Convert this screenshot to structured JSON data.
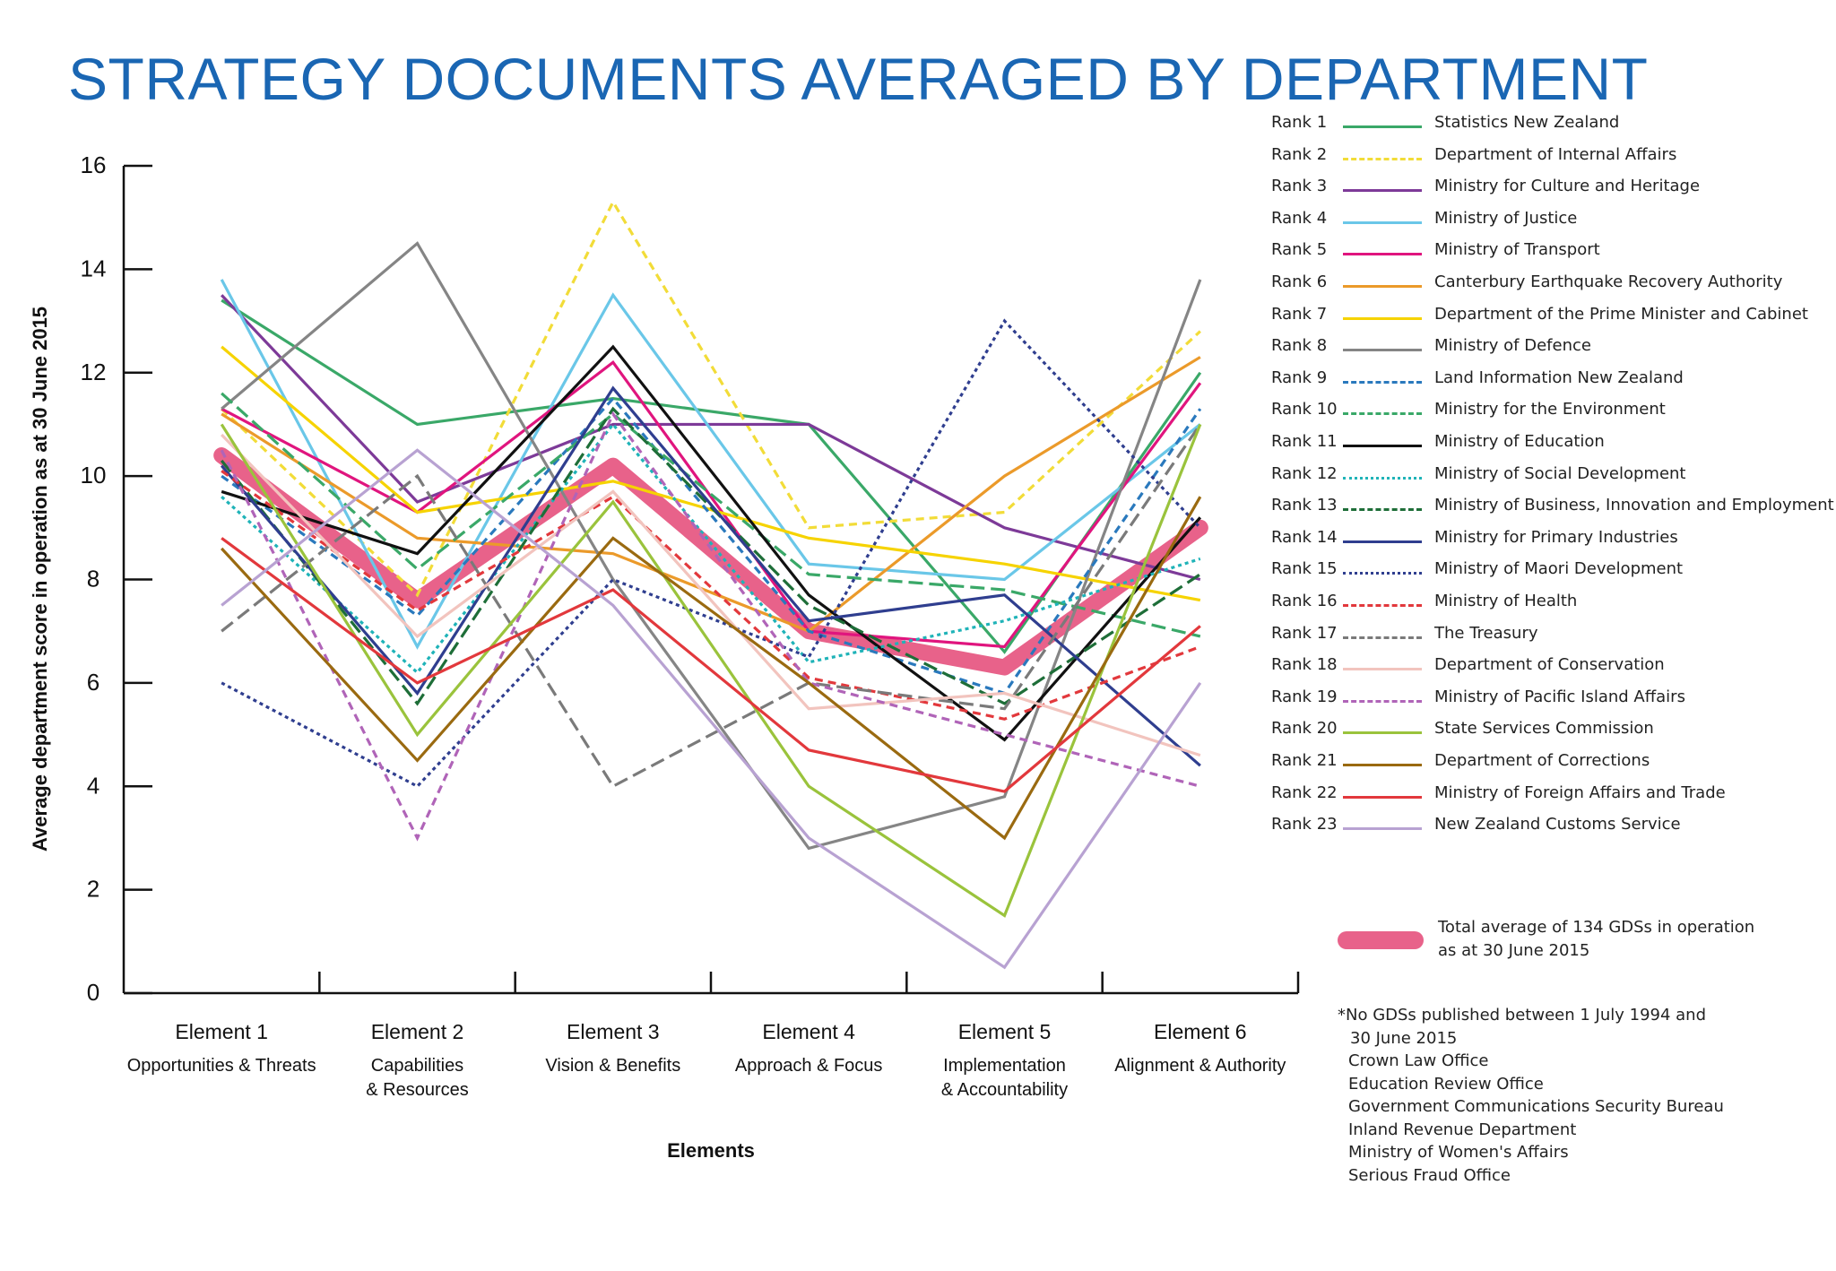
{
  "title": "STRATEGY DOCUMENTS AVERAGED BY DEPARTMENT",
  "chart_data": {
    "type": "line",
    "title": "STRATEGY DOCUMENTS AVERAGED BY DEPARTMENT",
    "xlabel": "Elements",
    "ylabel": "Average department score in operation as at 30 June 2015",
    "ylim": [
      0,
      16
    ],
    "yticks": [
      "0",
      "2",
      "4",
      "6",
      "8",
      "10",
      "12",
      "14",
      "16"
    ],
    "categories": [
      {
        "line1": "Element 1",
        "line2": "Opportunities & Threats",
        "line3": ""
      },
      {
        "line1": "Element 2",
        "line2": "Capabilities",
        "line3": "& Resources"
      },
      {
        "line1": "Element 3",
        "line2": "Vision & Benefits",
        "line3": ""
      },
      {
        "line1": "Element 4",
        "line2": "Approach & Focus",
        "line3": ""
      },
      {
        "line1": "Element 5",
        "line2": "Implementation",
        "line3": "& Accountability"
      },
      {
        "line1": "Element 6",
        "line2": "Alignment & Authority",
        "line3": ""
      }
    ],
    "grid": false,
    "legend_position": "right",
    "series": [
      {
        "rank": "Rank 1",
        "name": "Statistics New Zealand",
        "color": "#3aa868",
        "dash": "solid",
        "values": [
          13.4,
          11.0,
          11.5,
          11.0,
          6.6,
          12.0
        ]
      },
      {
        "rank": "Rank 2",
        "name": "Department of Internal Affairs",
        "color": "#f2dc38",
        "dash": "dashed",
        "values": [
          11.3,
          7.7,
          15.3,
          9.0,
          9.3,
          12.8
        ]
      },
      {
        "rank": "Rank 3",
        "name": "Ministry for Culture and Heritage",
        "color": "#7d3a98",
        "dash": "solid",
        "values": [
          13.5,
          9.5,
          11.0,
          11.0,
          9.0,
          8.0
        ]
      },
      {
        "rank": "Rank 4",
        "name": "Ministry of Justice",
        "color": "#6ac7e8",
        "dash": "solid",
        "values": [
          13.8,
          6.7,
          13.5,
          8.3,
          8.0,
          11.0
        ]
      },
      {
        "rank": "Rank 5",
        "name": "Ministry of Transport",
        "color": "#e0157e",
        "dash": "solid",
        "values": [
          11.3,
          9.3,
          12.2,
          7.0,
          6.7,
          11.8
        ]
      },
      {
        "rank": "Rank 6",
        "name": "Canterbury Earthquake Recovery Authority",
        "color": "#eb9a2a",
        "dash": "solid",
        "values": [
          11.2,
          8.8,
          8.5,
          7.0,
          10.0,
          12.3
        ]
      },
      {
        "rank": "Rank 7",
        "name": "Department of the Prime Minister and Cabinet",
        "color": "#f6d300",
        "dash": "solid",
        "values": [
          12.5,
          9.3,
          9.9,
          8.8,
          8.3,
          7.6
        ]
      },
      {
        "rank": "Rank 8",
        "name": "Ministry of Defence",
        "color": "#858585",
        "dash": "solid",
        "values": [
          11.3,
          14.5,
          8.0,
          2.8,
          3.8,
          13.8
        ]
      },
      {
        "rank": "Rank 9",
        "name": "Land Information New Zealand",
        "color": "#2a79bd",
        "dash": "dashed",
        "values": [
          10.0,
          7.3,
          11.5,
          7.0,
          5.8,
          11.3
        ]
      },
      {
        "rank": "Rank 10",
        "name": "Ministry for the Environment",
        "color": "#3aa868",
        "dash": "longdash",
        "values": [
          11.6,
          8.2,
          11.2,
          8.1,
          7.8,
          6.9
        ]
      },
      {
        "rank": "Rank 11",
        "name": "Ministry of Education",
        "color": "#111111",
        "dash": "solid",
        "values": [
          9.7,
          8.5,
          12.5,
          7.7,
          4.9,
          9.2
        ]
      },
      {
        "rank": "Rank 12",
        "name": "Ministry of Social Development",
        "color": "#1fb3b8",
        "dash": "dotted",
        "values": [
          9.6,
          6.2,
          11.0,
          6.4,
          7.2,
          8.4
        ]
      },
      {
        "rank": "Rank 13",
        "name": "Ministry of Business, Innovation and Employment",
        "color": "#1e6e38",
        "dash": "longdash",
        "values": [
          10.3,
          5.6,
          11.3,
          7.5,
          5.6,
          8.1
        ]
      },
      {
        "rank": "Rank 14",
        "name": "Ministry for Primary Industries",
        "color": "#2f3e8f",
        "dash": "solid",
        "values": [
          10.2,
          5.8,
          11.7,
          7.2,
          7.7,
          4.4
        ]
      },
      {
        "rank": "Rank 15",
        "name": "Ministry of Maori Development",
        "color": "#2f3e8f",
        "dash": "dotted",
        "values": [
          6.0,
          4.0,
          8.0,
          6.5,
          13.0,
          9.0
        ]
      },
      {
        "rank": "Rank 16",
        "name": "Ministry of Health",
        "color": "#e2383c",
        "dash": "dashed",
        "values": [
          10.1,
          7.4,
          9.6,
          6.1,
          5.3,
          6.7
        ]
      },
      {
        "rank": "Rank 17",
        "name": "The Treasury",
        "color": "#7a7a7a",
        "dash": "longdash",
        "values": [
          7.0,
          10.0,
          4.0,
          6.0,
          5.5,
          11.0
        ]
      },
      {
        "rank": "Rank 18",
        "name": "Department of Conservation",
        "color": "#f2c4be",
        "dash": "solid",
        "values": [
          10.8,
          6.9,
          9.7,
          5.5,
          5.8,
          4.6
        ]
      },
      {
        "rank": "Rank 19",
        "name": "Ministry of Pacific Island Affairs",
        "color": "#b064b8",
        "dash": "dashed",
        "values": [
          10.5,
          3.0,
          11.2,
          6.0,
          5.0,
          4.0
        ]
      },
      {
        "rank": "Rank 20",
        "name": "State Services Commission",
        "color": "#9ac33c",
        "dash": "solid",
        "values": [
          11.0,
          5.0,
          9.5,
          4.0,
          1.5,
          11.0
        ]
      },
      {
        "rank": "Rank 21",
        "name": "Department of Corrections",
        "color": "#9a6a10",
        "dash": "solid",
        "values": [
          8.6,
          4.5,
          8.8,
          6.0,
          3.0,
          9.6
        ]
      },
      {
        "rank": "Rank 22",
        "name": "Ministry of Foreign Affairs and Trade",
        "color": "#e2383c",
        "dash": "solid",
        "values": [
          8.8,
          6.0,
          7.8,
          4.7,
          3.9,
          7.1
        ]
      },
      {
        "rank": "Rank 23",
        "name": "New Zealand Customs Service",
        "color": "#b8a2d2",
        "dash": "solid",
        "values": [
          7.5,
          10.5,
          7.5,
          3.0,
          0.5,
          6.0
        ]
      }
    ],
    "average": {
      "name": "Total average of 134 GDSs in operation as at 30 June 2015",
      "color": "#e8628a",
      "values": [
        10.4,
        7.6,
        10.2,
        7.0,
        6.3,
        9.0
      ]
    }
  },
  "note": {
    "heading_line1": "*No GDSs published between 1 July 1994 and",
    "heading_line2": "30 June 2015",
    "items": [
      "Crown Law Office",
      "Education Review Office",
      "Government Communications Security Bureau",
      "Inland Revenue Department",
      "Ministry of Women's Affairs",
      "Serious Fraud Office"
    ]
  }
}
